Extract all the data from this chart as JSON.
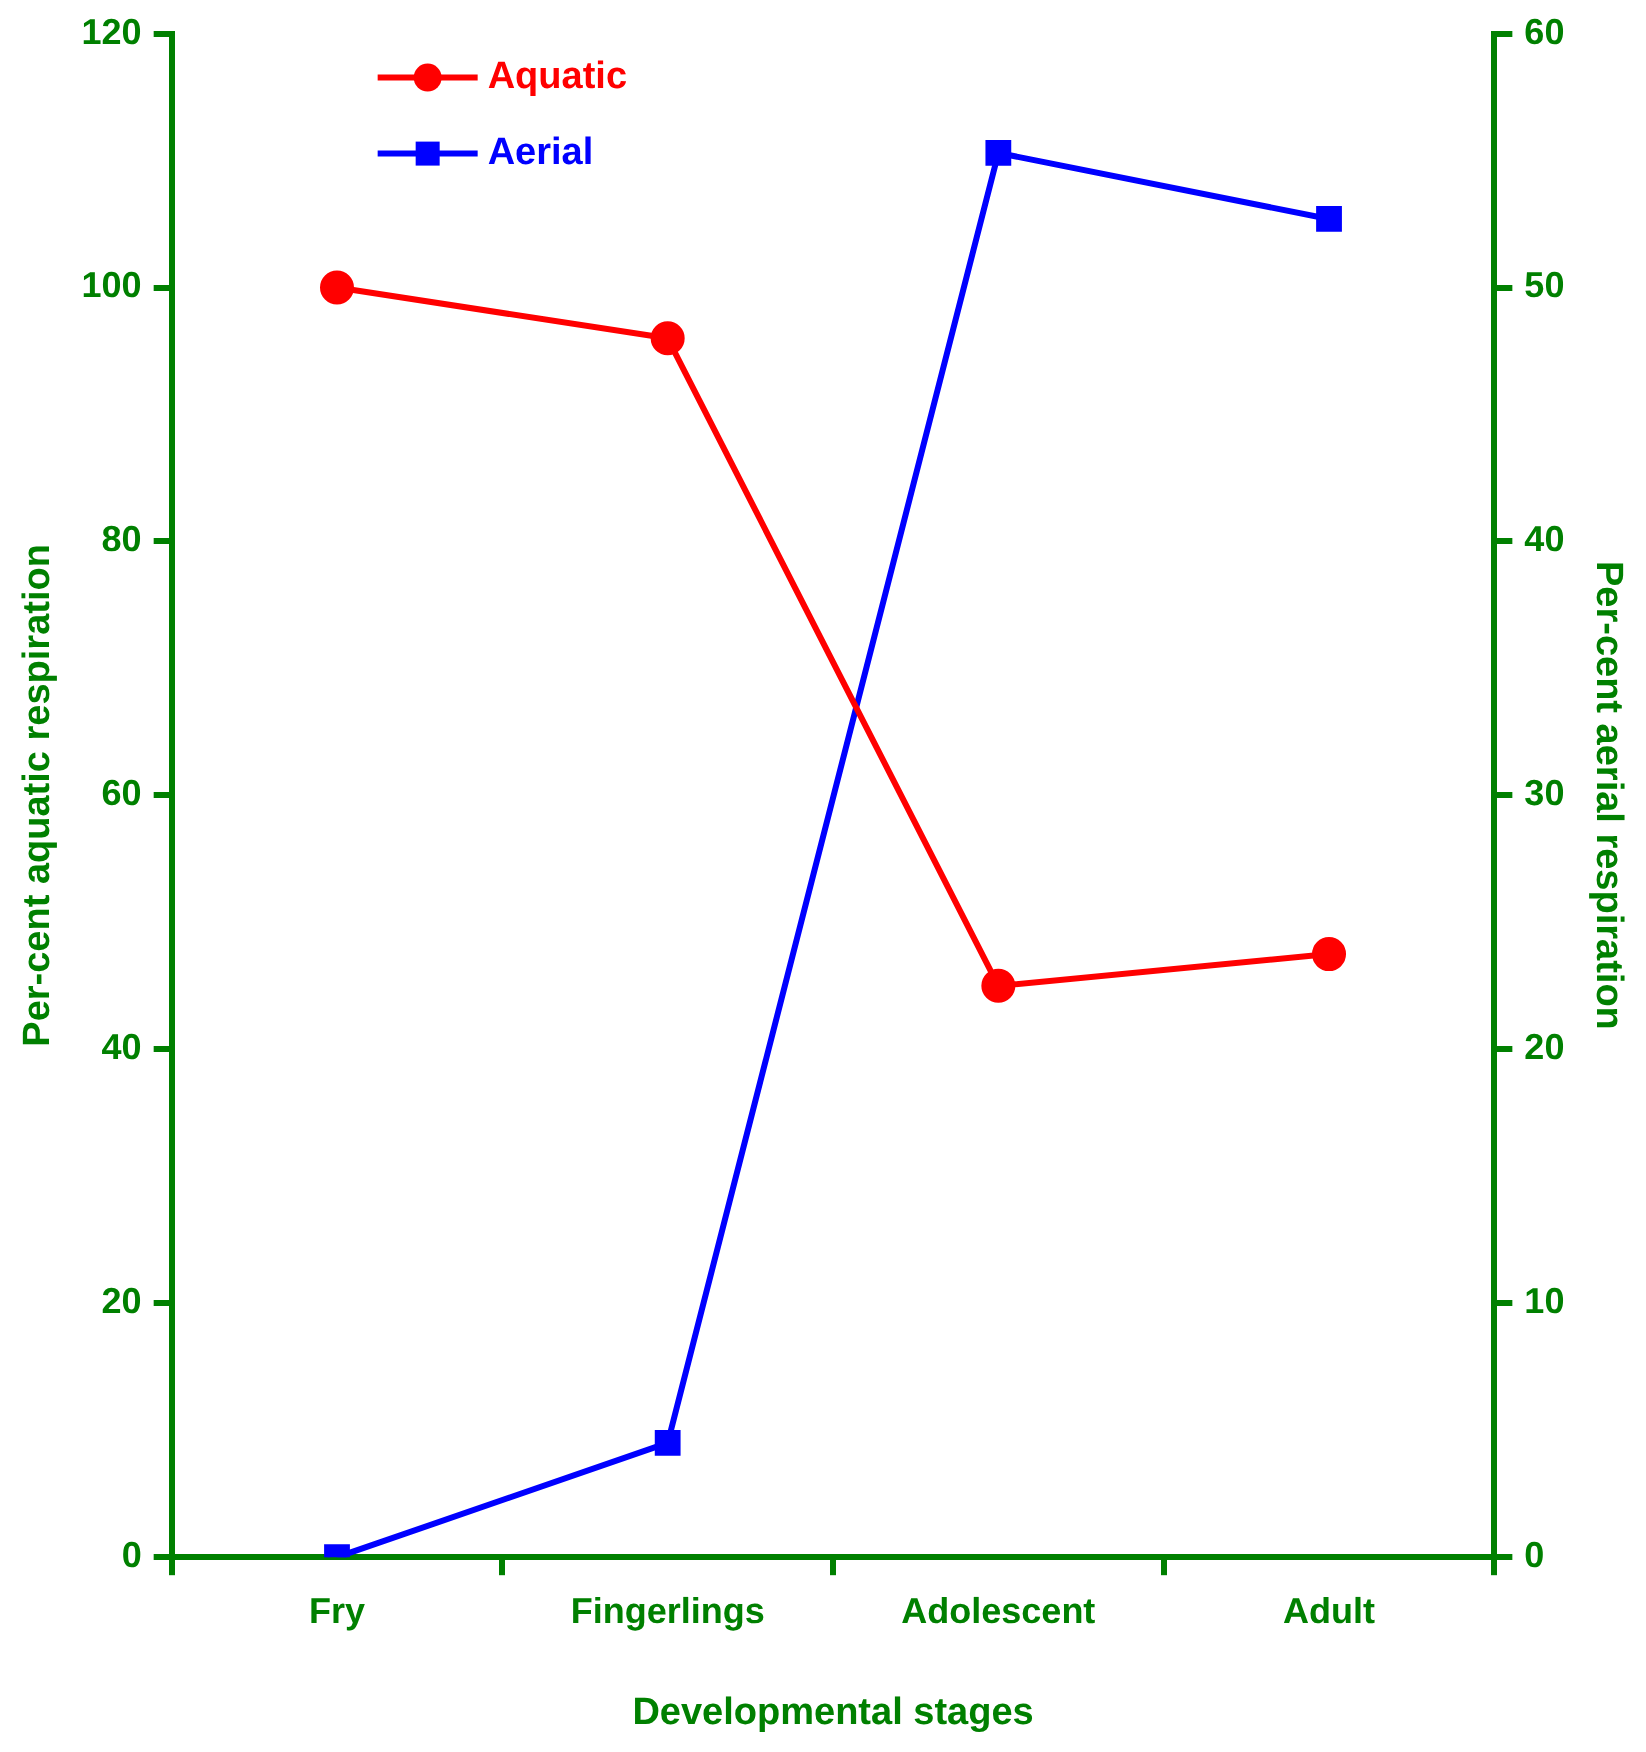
{
  "chart_data": {
    "type": "line",
    "xlabel": "Developmental stages",
    "ylabel": "Per-cent aquatic respiration",
    "y2label": "Per-cent aerial respiration",
    "categories": [
      "Fry",
      "Fingerlings",
      "Adolescent",
      "Adult"
    ],
    "series": [
      {
        "name": "Aquatic",
        "color": "#ff0000",
        "values": [
          100,
          96,
          45,
          47.5
        ],
        "marker": "circle"
      },
      {
        "name": "Aerial",
        "color": "#0000ff",
        "values": [
          0,
          4.5,
          55.3,
          52.7
        ],
        "axis": "y2",
        "marker": "square"
      }
    ],
    "ylim": [
      0,
      120
    ],
    "yticks": [
      0,
      20,
      40,
      60,
      80,
      100,
      120
    ],
    "y2lim": [
      0,
      60
    ],
    "y2ticks": [
      0,
      10,
      20,
      30,
      40,
      50,
      60
    ],
    "grid": false,
    "legend": "top left",
    "line_style": "solid"
  }
}
